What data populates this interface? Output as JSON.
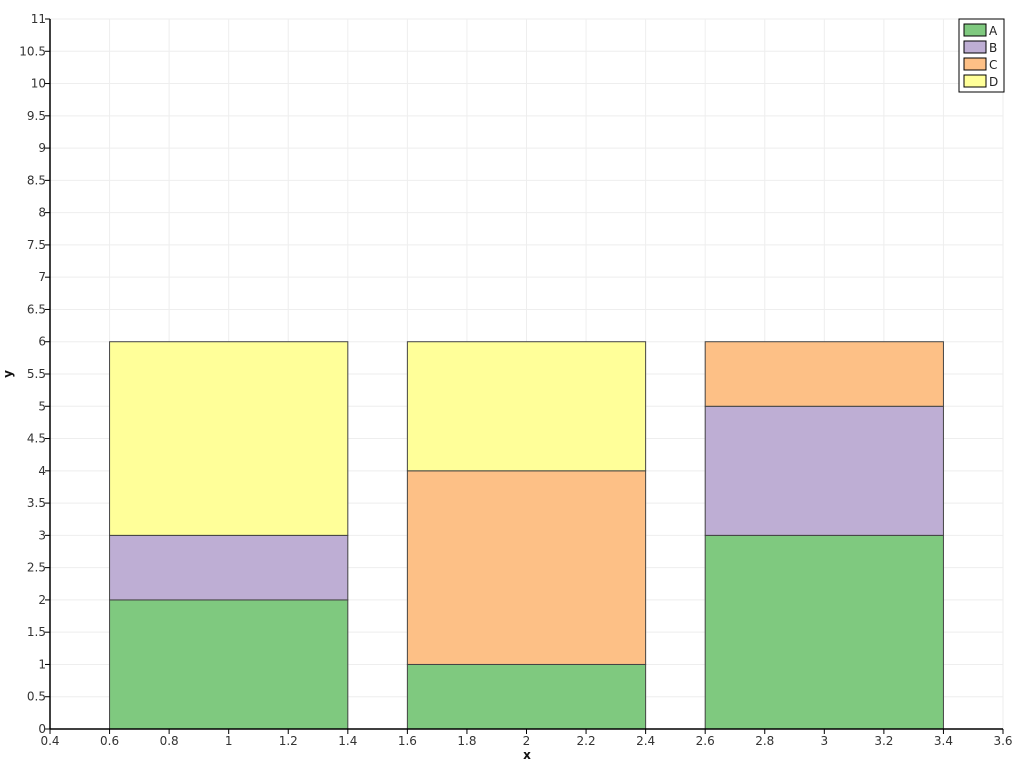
{
  "chart_data": {
    "type": "bar",
    "stacked": true,
    "title": "",
    "xlabel": "x",
    "ylabel": "y",
    "xlim": [
      0.4,
      3.6
    ],
    "ylim": [
      0,
      11
    ],
    "grid": true,
    "legend_position": "top-right",
    "x": [
      1,
      2,
      3
    ],
    "bar_width": 0.8,
    "x_ticks": [
      "0.4",
      "0.6",
      "0.8",
      "1",
      "1.2",
      "1.4",
      "1.6",
      "1.8",
      "2",
      "2.2",
      "2.4",
      "2.6",
      "2.8",
      "3",
      "3.2",
      "3.4",
      "3.6"
    ],
    "y_ticks": [
      "0",
      "0.5",
      "1",
      "1.5",
      "2",
      "2.5",
      "3",
      "3.5",
      "4",
      "4.5",
      "5",
      "5.5",
      "6",
      "6.5",
      "7",
      "7.5",
      "8",
      "8.5",
      "9",
      "9.5",
      "10",
      "10.5",
      "11"
    ],
    "series": [
      {
        "name": "A",
        "color": "#7fc97f",
        "values": [
          2,
          1,
          3
        ]
      },
      {
        "name": "B",
        "color": "#beaed4",
        "values": [
          1,
          0,
          2
        ]
      },
      {
        "name": "C",
        "color": "#fdc086",
        "values": [
          0,
          3,
          1
        ]
      },
      {
        "name": "D",
        "color": "#ffff99",
        "values": [
          3,
          2,
          0
        ]
      }
    ]
  }
}
